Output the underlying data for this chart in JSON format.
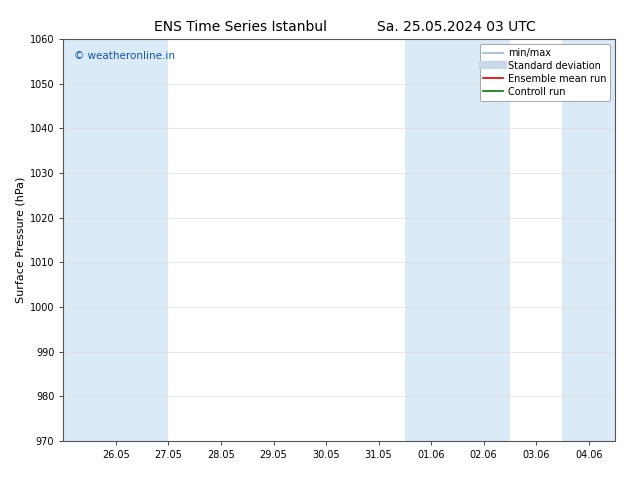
{
  "title_left": "ENS Time Series Istanbul",
  "title_right": "Sa. 25.05.2024 03 UTC",
  "ylabel": "Surface Pressure (hPa)",
  "ylim": [
    970,
    1060
  ],
  "yticks": [
    970,
    980,
    990,
    1000,
    1010,
    1020,
    1030,
    1040,
    1050,
    1060
  ],
  "x_labels": [
    "26.05",
    "27.05",
    "28.05",
    "29.05",
    "30.05",
    "31.05",
    "01.06",
    "02.06",
    "03.06",
    "04.06"
  ],
  "x_positions": [
    1,
    2,
    3,
    4,
    5,
    6,
    7,
    8,
    9,
    10
  ],
  "x_min": 0.0,
  "x_max": 10.5,
  "shaded_intervals": [
    [
      0.0,
      2.0
    ],
    [
      6.5,
      8.5
    ],
    [
      9.5,
      10.5
    ]
  ],
  "bg_color": "#ffffff",
  "band_color": "#daeaf7",
  "watermark": "© weatheronline.in",
  "watermark_color": "#1155bb",
  "legend_entries": [
    {
      "label": "min/max",
      "color": "#b0c4d8",
      "lw": 1.5,
      "style": "-"
    },
    {
      "label": "Standard deviation",
      "color": "#c8d8e8",
      "lw": 6,
      "style": "-"
    },
    {
      "label": "Ensemble mean run",
      "color": "#dd0000",
      "lw": 1.2,
      "style": "-"
    },
    {
      "label": "Controll run",
      "color": "#007700",
      "lw": 1.2,
      "style": "-"
    }
  ],
  "title_fontsize": 10,
  "tick_fontsize": 7,
  "ylabel_fontsize": 8,
  "legend_fontsize": 7
}
